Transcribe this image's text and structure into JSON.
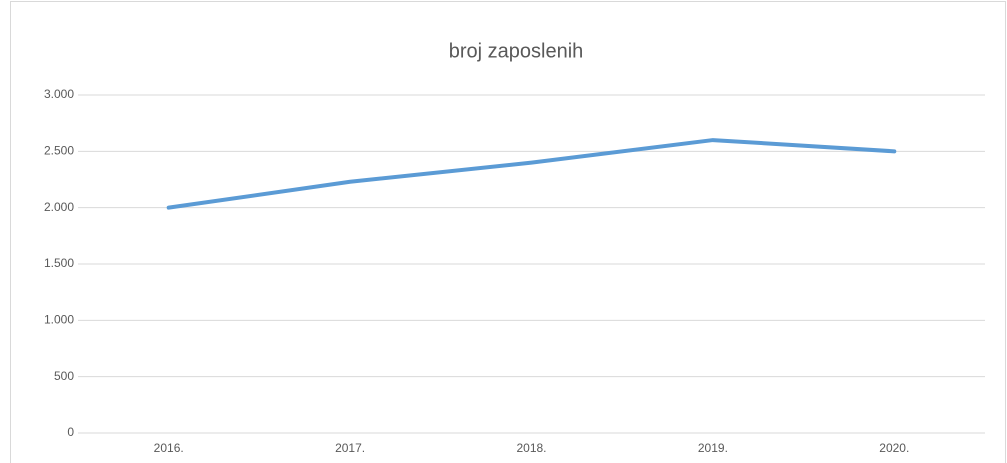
{
  "chart_data": {
    "type": "line",
    "title": "broj zaposlenih",
    "categories": [
      "2016.",
      "2017.",
      "2018.",
      "2019.",
      "2020."
    ],
    "series": [
      {
        "name": "broj zaposlenih",
        "color": "#5b9bd5",
        "values": [
          2000,
          2230,
          2400,
          2600,
          2500
        ]
      }
    ],
    "ylim": [
      0,
      3000
    ],
    "yticks": [
      0,
      500,
      {
        "value": 1000,
        "label": "1.000"
      },
      {
        "value": 1500,
        "label": "1.500"
      },
      {
        "value": 2000,
        "label": "2.000"
      },
      {
        "value": 2500,
        "label": "2.500"
      },
      {
        "value": 3000,
        "label": "3.000"
      }
    ],
    "grid": true
  }
}
